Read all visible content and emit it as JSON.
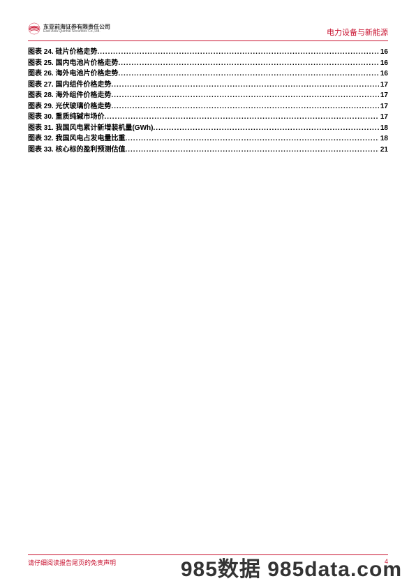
{
  "header": {
    "company_cn": "东亚前海证券有限责任公司",
    "company_en": "East Asia Qianhai Securities Co.,Ltd.",
    "category": "电力设备与新能源",
    "logo_color_1": "#c8102e",
    "logo_color_2": "#8b1a1a"
  },
  "toc": {
    "entries": [
      {
        "num": "24",
        "title": "硅片价格走势",
        "page": "16"
      },
      {
        "num": "25",
        "title": "国内电池片价格走势",
        "page": "16"
      },
      {
        "num": "26",
        "title": "海外电池片价格走势",
        "page": "16"
      },
      {
        "num": "27",
        "title": "国内组件价格走势",
        "page": "17"
      },
      {
        "num": "28",
        "title": "海外组件价格走势",
        "page": "17"
      },
      {
        "num": "29",
        "title": "光伏玻璃价格走势",
        "page": "17"
      },
      {
        "num": "30",
        "title": "重质纯碱市场价",
        "page": "17"
      },
      {
        "num": "31",
        "title": "我国风电累计新增装机量(GWh)",
        "page": "18"
      },
      {
        "num": "32",
        "title": "我国风电占发电量比重",
        "page": "18"
      },
      {
        "num": "33",
        "title": "核心标的盈利预测估值",
        "page": "21"
      }
    ],
    "prefix": "图表"
  },
  "footer": {
    "disclaimer": "请仔细阅读报告尾页的免责声明",
    "page_num": "4"
  },
  "watermark": "985数据 985data.com",
  "colors": {
    "accent": "#c8102e",
    "text": "#000000",
    "background": "#ffffff"
  }
}
